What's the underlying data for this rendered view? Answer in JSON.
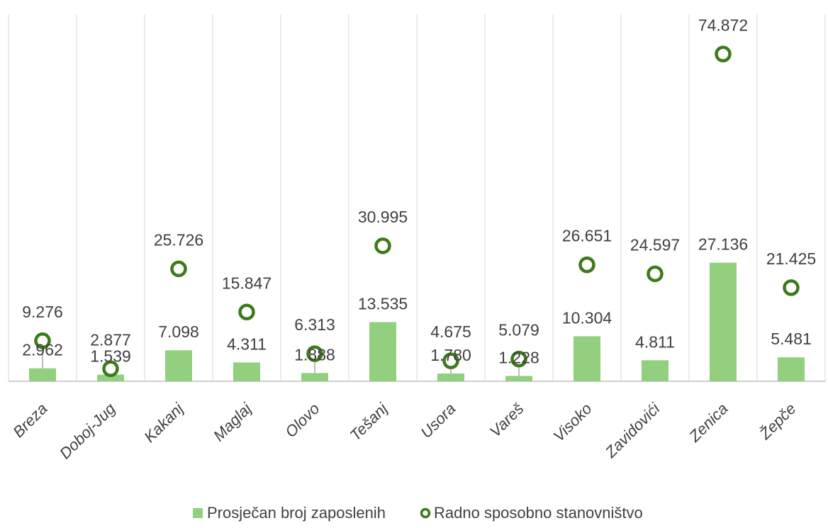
{
  "chart_data": {
    "type": "bar",
    "categories": [
      "Breza",
      "Doboj-Jug",
      "Kakanj",
      "Maglaj",
      "Olovo",
      "Tešanj",
      "Usora",
      "Vareš",
      "Visoko",
      "Zavidovići",
      "Zenica",
      "Žepče"
    ],
    "series": [
      {
        "name": "Prosječan broj zaposlenih",
        "type": "bar",
        "values": [
          2962,
          1539,
          7098,
          4311,
          1888,
          13535,
          1780,
          1228,
          10304,
          4811,
          27136,
          5481
        ],
        "labels": [
          "2.962",
          "1.539",
          "7.098",
          "4.311",
          "1.888",
          "13.535",
          "1.780",
          "1.228",
          "10.304",
          "4.811",
          "27.136",
          "5.481"
        ],
        "color": "#92d07f"
      },
      {
        "name": "Radno sposobno stanovništvo",
        "type": "marker",
        "marker": "circle-open",
        "values": [
          9276,
          2877,
          25726,
          15847,
          6313,
          30995,
          4675,
          5079,
          26651,
          24597,
          74872,
          21425
        ],
        "labels": [
          "9.276",
          "2.877",
          "25.726",
          "15.847",
          "6.313",
          "30.995",
          "4.675",
          "5.079",
          "26.651",
          "24.597",
          "74.872",
          "21.425"
        ],
        "color": "#3c7a1a"
      }
    ],
    "ylim": [
      0,
      84000
    ],
    "grid": "vertical-category-separators",
    "legend_position": "bottom"
  },
  "colors": {
    "bar": "#92d07f",
    "marker": "#3c7a1a",
    "grid": "#d9d9d9",
    "axis": "#bfbfbf",
    "leader": "#a6a6a6"
  }
}
